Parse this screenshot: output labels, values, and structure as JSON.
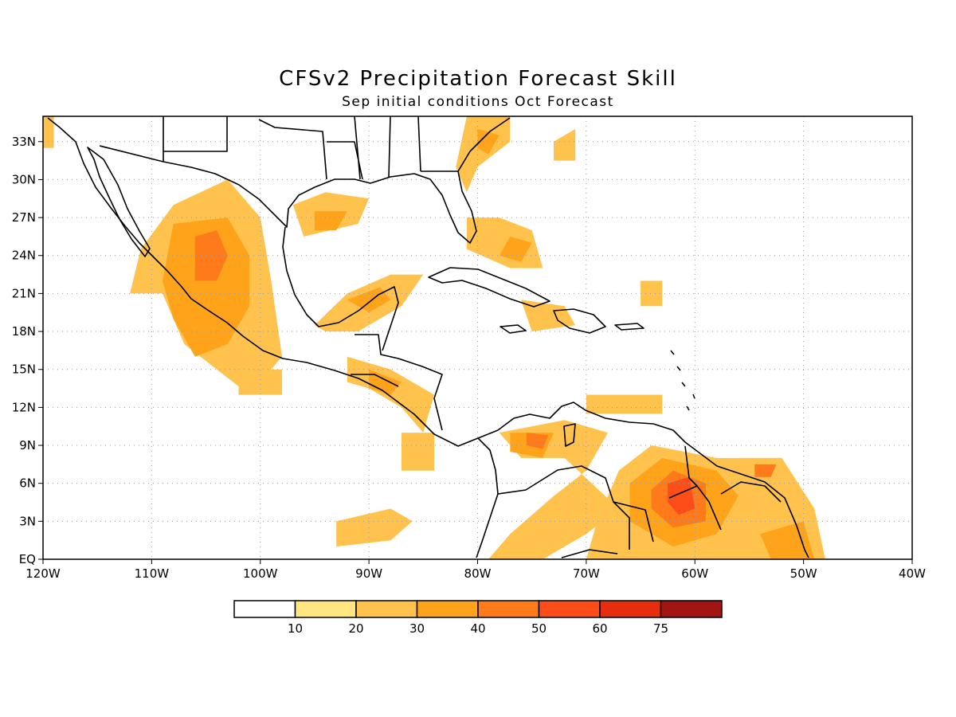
{
  "header": {
    "title": "CFSv2 Precipitation Forecast Skill",
    "subtitle": "Sep initial conditions  Oct Forecast"
  },
  "map": {
    "lon_range": [
      -120,
      -40
    ],
    "lat_range": [
      0,
      35
    ],
    "lon_ticks": [
      {
        "value": -120,
        "label": "120W"
      },
      {
        "value": -110,
        "label": "110W"
      },
      {
        "value": -100,
        "label": "100W"
      },
      {
        "value": -90,
        "label": "90W"
      },
      {
        "value": -80,
        "label": "80W"
      },
      {
        "value": -70,
        "label": "70W"
      },
      {
        "value": -60,
        "label": "60W"
      },
      {
        "value": -50,
        "label": "50W"
      },
      {
        "value": -40,
        "label": "40W"
      }
    ],
    "lat_ticks": [
      {
        "value": 0,
        "label": "EQ"
      },
      {
        "value": 3,
        "label": "3N"
      },
      {
        "value": 6,
        "label": "6N"
      },
      {
        "value": 9,
        "label": "9N"
      },
      {
        "value": 12,
        "label": "12N"
      },
      {
        "value": 15,
        "label": "15N"
      },
      {
        "value": 18,
        "label": "18N"
      },
      {
        "value": 21,
        "label": "21N"
      },
      {
        "value": 24,
        "label": "24N"
      },
      {
        "value": 27,
        "label": "27N"
      },
      {
        "value": 30,
        "label": "30N"
      },
      {
        "value": 33,
        "label": "33N"
      }
    ],
    "grid": "dotted",
    "skill_regions": [
      {
        "name": "mexico-west",
        "level": 20,
        "pts": [
          [
            -111,
            24.5
          ],
          [
            -108,
            28
          ],
          [
            -103,
            30
          ],
          [
            -100,
            27
          ],
          [
            -99,
            22
          ],
          [
            -98,
            16
          ],
          [
            -101,
            13
          ],
          [
            -104,
            15
          ],
          [
            -107,
            17
          ],
          [
            -109,
            21
          ],
          [
            -112,
            21
          ]
        ]
      },
      {
        "name": "mexico-west",
        "level": 30,
        "pts": [
          [
            -108,
            26.5
          ],
          [
            -103,
            27
          ],
          [
            -101,
            24
          ],
          [
            -101,
            20
          ],
          [
            -103,
            17
          ],
          [
            -106,
            16
          ],
          [
            -108,
            19
          ],
          [
            -109,
            22
          ]
        ]
      },
      {
        "name": "mexico-west",
        "level": 40,
        "pts": [
          [
            -106,
            25.5
          ],
          [
            -104,
            26
          ],
          [
            -103,
            24
          ],
          [
            -104,
            22
          ],
          [
            -106,
            22
          ]
        ]
      },
      {
        "name": "texas-coast",
        "level": 20,
        "pts": [
          [
            -97,
            28
          ],
          [
            -94,
            29
          ],
          [
            -90,
            28.5
          ],
          [
            -91,
            26.5
          ],
          [
            -96,
            25.5
          ]
        ]
      },
      {
        "name": "texas-coast",
        "level": 30,
        "pts": [
          [
            -95,
            27.5
          ],
          [
            -92,
            27.5
          ],
          [
            -93,
            26
          ],
          [
            -95,
            26
          ]
        ]
      },
      {
        "name": "yucatan-campeche",
        "level": 20,
        "pts": [
          [
            -95,
            18.5
          ],
          [
            -92,
            21
          ],
          [
            -88,
            22.5
          ],
          [
            -85,
            22.5
          ],
          [
            -87,
            20
          ],
          [
            -91,
            18
          ],
          [
            -94,
            18
          ]
        ]
      },
      {
        "name": "yucatan-campeche",
        "level": 30,
        "pts": [
          [
            -92,
            20.5
          ],
          [
            -89,
            21.5
          ],
          [
            -88,
            20.5
          ],
          [
            -90,
            19.5
          ]
        ]
      },
      {
        "name": "florida-carolina",
        "level": 20,
        "pts": [
          [
            -81,
            35
          ],
          [
            -77,
            35
          ],
          [
            -77,
            33
          ],
          [
            -80,
            31
          ],
          [
            -81,
            29
          ],
          [
            -82,
            31
          ]
        ]
      },
      {
        "name": "florida-carolina",
        "level": 30,
        "pts": [
          [
            -80,
            34
          ],
          [
            -78,
            33.5
          ],
          [
            -79,
            32
          ],
          [
            -80,
            32.5
          ]
        ]
      },
      {
        "name": "bahamas",
        "level": 20,
        "pts": [
          [
            -81,
            27
          ],
          [
            -78,
            27
          ],
          [
            -75,
            26
          ],
          [
            -74,
            23
          ],
          [
            -77,
            23
          ],
          [
            -81,
            24.5
          ]
        ]
      },
      {
        "name": "bahamas",
        "level": 30,
        "pts": [
          [
            -77,
            25.5
          ],
          [
            -75,
            25
          ],
          [
            -76,
            23.5
          ],
          [
            -78,
            24
          ]
        ]
      },
      {
        "name": "hispaniola",
        "level": 20,
        "pts": [
          [
            -76,
            20.5
          ],
          [
            -72,
            20
          ],
          [
            -71,
            18.5
          ],
          [
            -75,
            18
          ]
        ]
      },
      {
        "name": "central-america",
        "level": 20,
        "pts": [
          [
            -92,
            16
          ],
          [
            -88,
            15
          ],
          [
            -84,
            13
          ],
          [
            -85,
            10
          ],
          [
            -87,
            12
          ],
          [
            -90,
            13.5
          ],
          [
            -92,
            14
          ]
        ]
      },
      {
        "name": "central-america",
        "level": 30,
        "pts": [
          [
            -90,
            15
          ],
          [
            -87,
            14
          ],
          [
            -88,
            13
          ],
          [
            -90,
            13.5
          ]
        ]
      },
      {
        "name": "colombia-venezuela",
        "level": 20,
        "pts": [
          [
            -78,
            10
          ],
          [
            -72,
            11
          ],
          [
            -68,
            10
          ],
          [
            -70,
            7
          ],
          [
            -73,
            5
          ],
          [
            -77,
            2
          ],
          [
            -79,
            0
          ],
          [
            -74,
            0
          ],
          [
            -70,
            2
          ],
          [
            -67,
            4
          ],
          [
            -72,
            8
          ],
          [
            -76,
            8
          ]
        ]
      },
      {
        "name": "colombia-venezuela",
        "level": 30,
        "pts": [
          [
            -77,
            10
          ],
          [
            -73,
            10
          ],
          [
            -74,
            8
          ],
          [
            -77,
            8.5
          ]
        ]
      },
      {
        "name": "colombia-venezuela",
        "level": 40,
        "pts": [
          [
            -75.5,
            10
          ],
          [
            -73.5,
            9.8
          ],
          [
            -74,
            8.7
          ],
          [
            -75.5,
            9
          ]
        ]
      },
      {
        "name": "guianas",
        "level": 20,
        "pts": [
          [
            -67,
            7
          ],
          [
            -64,
            9
          ],
          [
            -58,
            8
          ],
          [
            -52,
            8
          ],
          [
            -49,
            4
          ],
          [
            -48,
            0
          ],
          [
            -70,
            0
          ],
          [
            -69,
            3
          ]
        ]
      },
      {
        "name": "guianas",
        "level": 30,
        "pts": [
          [
            -66,
            6
          ],
          [
            -63,
            8
          ],
          [
            -58,
            7
          ],
          [
            -56,
            5
          ],
          [
            -58,
            2
          ],
          [
            -62,
            1
          ],
          [
            -66,
            3
          ]
        ]
      },
      {
        "name": "guianas",
        "level": 40,
        "pts": [
          [
            -64,
            5.5
          ],
          [
            -62,
            7
          ],
          [
            -59,
            6
          ],
          [
            -59,
            3
          ],
          [
            -62,
            2.5
          ],
          [
            -64,
            4
          ]
        ]
      },
      {
        "name": "guianas",
        "level": 50,
        "pts": [
          [
            -62.5,
            6
          ],
          [
            -60.5,
            6.5
          ],
          [
            -60,
            4
          ],
          [
            -61.5,
            3.5
          ],
          [
            -62.5,
            4.5
          ]
        ]
      },
      {
        "name": "suriname-coast",
        "level": 20,
        "pts": [
          [
            -56,
            8
          ],
          [
            -52,
            8
          ],
          [
            -52,
            6
          ],
          [
            -55,
            6
          ]
        ]
      },
      {
        "name": "suriname-coast",
        "level": 40,
        "pts": [
          [
            -54.5,
            7.5
          ],
          [
            -52.5,
            7.5
          ],
          [
            -53,
            6.5
          ],
          [
            -54.5,
            6.5
          ]
        ]
      },
      {
        "name": "brazil-amapa",
        "level": 30,
        "pts": [
          [
            -54,
            2
          ],
          [
            -50,
            3
          ],
          [
            -49,
            0
          ],
          [
            -53,
            0
          ]
        ]
      },
      {
        "name": "pacific-8n",
        "level": 20,
        "pts": [
          [
            -87,
            10
          ],
          [
            -84,
            10
          ],
          [
            -84,
            7
          ],
          [
            -87,
            7
          ]
        ]
      },
      {
        "name": "pacific-3n",
        "level": 20,
        "pts": [
          [
            -93,
            3
          ],
          [
            -88,
            4
          ],
          [
            -86,
            3
          ],
          [
            -88,
            1.5
          ],
          [
            -93,
            1
          ]
        ]
      },
      {
        "name": "east-caribbean",
        "level": 20,
        "pts": [
          [
            -65,
            22
          ],
          [
            -63,
            22
          ],
          [
            -63,
            20
          ],
          [
            -65,
            20
          ]
        ]
      },
      {
        "name": "east-caribbean",
        "level": 20,
        "pts": [
          [
            -70,
            13
          ],
          [
            -63,
            13
          ],
          [
            -63,
            11.5
          ],
          [
            -70,
            11.5
          ]
        ]
      },
      {
        "name": "atlantic-32n",
        "level": 20,
        "pts": [
          [
            -73,
            33
          ],
          [
            -71,
            34
          ],
          [
            -71,
            31.5
          ],
          [
            -73,
            31.5
          ]
        ]
      },
      {
        "name": "baja-north",
        "level": 20,
        "pts": [
          [
            -120,
            35
          ],
          [
            -119,
            35
          ],
          [
            -119,
            32.5
          ],
          [
            -120,
            32.5
          ]
        ]
      },
      {
        "name": "pacific-13n",
        "level": 20,
        "pts": [
          [
            -102,
            15
          ],
          [
            -98,
            15
          ],
          [
            -98,
            13
          ],
          [
            -102,
            13
          ]
        ]
      }
    ]
  },
  "legend": {
    "labels": [
      "10",
      "20",
      "30",
      "40",
      "50",
      "60",
      "75"
    ],
    "colors": [
      "#ffffff",
      "#ffe680",
      "#ffc34d",
      "#ffa31a",
      "#ff7a1a",
      "#ff4d1a",
      "#e62e0f",
      "#a31414"
    ]
  }
}
